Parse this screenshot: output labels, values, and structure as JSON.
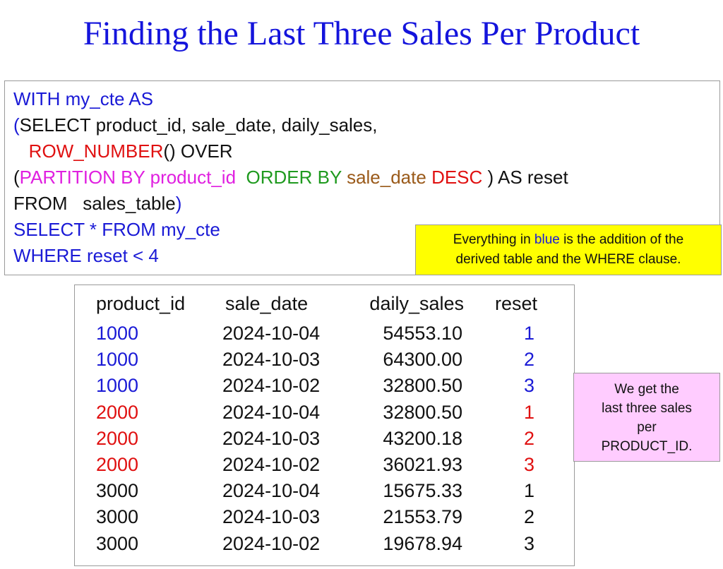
{
  "title": "Finding the Last Three Sales Per Product",
  "code": [
    [
      {
        "t": "WITH my_cte AS",
        "c": "blue"
      }
    ],
    [
      {
        "t": "(",
        "c": "blue"
      },
      {
        "t": "SELECT product_id, sale_date, daily_sales,",
        "c": "black"
      }
    ],
    [
      {
        "t": "   ",
        "c": "black"
      },
      {
        "t": "ROW_NUMBER",
        "c": "red"
      },
      {
        "t": "() OVER",
        "c": "black"
      }
    ],
    [
      {
        "t": "(",
        "c": "black"
      },
      {
        "t": "PARTITION BY product_id",
        "c": "magenta"
      },
      {
        "t": "  ",
        "c": "black"
      },
      {
        "t": "ORDER BY",
        "c": "green"
      },
      {
        "t": " ",
        "c": "black"
      },
      {
        "t": "sale_date",
        "c": "brown"
      },
      {
        "t": " ",
        "c": "black"
      },
      {
        "t": "DESC",
        "c": "red"
      },
      {
        "t": " ) AS reset",
        "c": "black"
      }
    ],
    [
      {
        "t": "FROM   sales_table",
        "c": "black"
      },
      {
        "t": ")",
        "c": "blue"
      }
    ],
    [
      {
        "t": "SELECT * FROM my_cte",
        "c": "blue"
      }
    ],
    [
      {
        "t": "WHERE reset < 4",
        "c": "blue"
      }
    ]
  ],
  "note_yellow": {
    "line1_before": "Everything in ",
    "line1_highlight": "blue",
    "line1_after": " is the addition of the",
    "line2": "derived table and the WHERE clause."
  },
  "table": {
    "headers": [
      "product_id",
      "sale_date",
      "daily_sales",
      "reset"
    ],
    "rows": [
      {
        "product_id": "1000",
        "sale_date": "2024-10-04",
        "daily_sales": "54553.10",
        "reset": "1",
        "color": "#1a1ad6"
      },
      {
        "product_id": "1000",
        "sale_date": "2024-10-03",
        "daily_sales": "64300.00",
        "reset": "2",
        "color": "#1a1ad6"
      },
      {
        "product_id": "1000",
        "sale_date": "2024-10-02",
        "daily_sales": "32800.50",
        "reset": "3",
        "color": "#1a1ad6"
      },
      {
        "product_id": "2000",
        "sale_date": "2024-10-04",
        "daily_sales": "32800.50",
        "reset": "1",
        "color": "#e01010"
      },
      {
        "product_id": "2000",
        "sale_date": "2024-10-03",
        "daily_sales": "43200.18",
        "reset": "2",
        "color": "#e01010"
      },
      {
        "product_id": "2000",
        "sale_date": "2024-10-02",
        "daily_sales": "36021.93",
        "reset": "3",
        "color": "#e01010"
      },
      {
        "product_id": "3000",
        "sale_date": "2024-10-04",
        "daily_sales": "15675.33",
        "reset": "1",
        "color": "#111111"
      },
      {
        "product_id": "3000",
        "sale_date": "2024-10-03",
        "daily_sales": "21553.79",
        "reset": "2",
        "color": "#111111"
      },
      {
        "product_id": "3000",
        "sale_date": "2024-10-02",
        "daily_sales": "19678.94",
        "reset": "3",
        "color": "#111111"
      }
    ]
  },
  "note_pink": [
    "We get the",
    "last three sales",
    "per",
    "PRODUCT_ID."
  ]
}
